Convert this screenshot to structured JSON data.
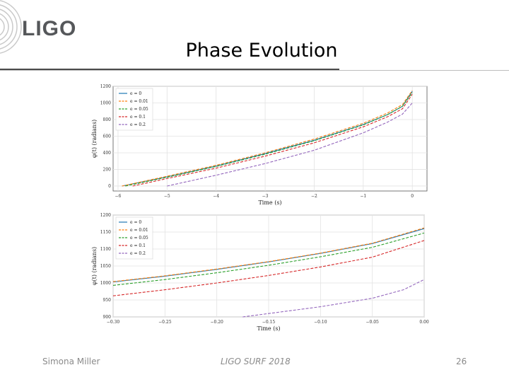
{
  "header": {
    "logo_text": "LIGO",
    "title": "Phase Evolution"
  },
  "footer": {
    "author": "Simona Miller",
    "event": "LIGO SURF 2018",
    "page_number": "26"
  },
  "colors": {
    "e0": "#1f77b4",
    "e001": "#ff7f0e",
    "e005": "#2ca02c",
    "e01": "#d62728",
    "e02": "#9467bd",
    "grid": "#e2e2e2",
    "axis": "#555555"
  },
  "chart_data": [
    {
      "type": "line",
      "title": "",
      "xlabel": "Time (s)",
      "ylabel": "φ(t) (radians)",
      "xlim": [
        -6.1,
        0.3
      ],
      "ylim": [
        -60,
        1200
      ],
      "xticks": [
        -6,
        -5,
        -4,
        -3,
        -2,
        -1,
        0
      ],
      "xtick_labels": [
        "−6",
        "−5",
        "−4",
        "−3",
        "−2",
        "−1",
        "0"
      ],
      "yticks": [
        0,
        200,
        400,
        600,
        800,
        1000,
        1200
      ],
      "ytick_labels": [
        "0",
        "200",
        "400",
        "600",
        "800",
        "1000",
        "1200"
      ],
      "legend": "top-left",
      "grid": true,
      "series": [
        {
          "name": "e = 0",
          "color_key": "e0",
          "dashed": false,
          "x": [
            -5.92,
            -5,
            -4,
            -3,
            -2,
            -1,
            -0.5,
            -0.2,
            0
          ],
          "y": [
            0,
            110,
            240,
            390,
            550,
            740,
            860,
            960,
            1140
          ]
        },
        {
          "name": "e = 0.01",
          "color_key": "e001",
          "dashed": true,
          "x": [
            -5.92,
            -5,
            -4,
            -3,
            -2,
            -1,
            -0.5,
            -0.2,
            0
          ],
          "y": [
            0,
            118,
            250,
            400,
            565,
            755,
            880,
            980,
            1150
          ]
        },
        {
          "name": "e = 0.05",
          "color_key": "e005",
          "dashed": true,
          "x": [
            -5.85,
            -5,
            -4,
            -3,
            -2,
            -1,
            -0.5,
            -0.2,
            0
          ],
          "y": [
            0,
            105,
            235,
            383,
            545,
            735,
            860,
            960,
            1125
          ]
        },
        {
          "name": "e = 0.1",
          "color_key": "e01",
          "dashed": true,
          "x": [
            -5.7,
            -5,
            -4,
            -3,
            -2,
            -1,
            -0.5,
            -0.2,
            0
          ],
          "y": [
            0,
            90,
            215,
            360,
            520,
            712,
            835,
            930,
            1105
          ]
        },
        {
          "name": "e = 0.2",
          "color_key": "e02",
          "dashed": true,
          "x": [
            -5.0,
            -4,
            -3,
            -2,
            -1,
            -0.5,
            -0.2,
            0
          ],
          "y": [
            0,
            130,
            270,
            430,
            640,
            770,
            865,
            1000
          ]
        }
      ]
    },
    {
      "type": "line",
      "title": "",
      "xlabel": "Time (s)",
      "ylabel": "φ(t) (radians)",
      "xlim": [
        -0.3,
        0.0
      ],
      "ylim": [
        900,
        1200
      ],
      "xticks": [
        -0.3,
        -0.25,
        -0.2,
        -0.15,
        -0.1,
        -0.05,
        0.0
      ],
      "xtick_labels": [
        "−0.30",
        "−0.25",
        "−0.20",
        "−0.15",
        "−0.10",
        "−0.05",
        "0.00"
      ],
      "yticks": [
        900,
        950,
        1000,
        1050,
        1100,
        1150,
        1200
      ],
      "ytick_labels": [
        "900",
        "950",
        "1000",
        "1050",
        "1100",
        "1150",
        "1200"
      ],
      "legend": "top-left",
      "grid": true,
      "series": [
        {
          "name": "e = 0",
          "color_key": "e0",
          "dashed": false,
          "x": [
            -0.3,
            -0.25,
            -0.2,
            -0.15,
            -0.1,
            -0.05,
            0.0
          ],
          "y": [
            1003,
            1020,
            1040,
            1062,
            1087,
            1116,
            1160
          ]
        },
        {
          "name": "e = 0.01",
          "color_key": "e001",
          "dashed": true,
          "x": [
            -0.3,
            -0.25,
            -0.2,
            -0.15,
            -0.1,
            -0.05,
            0.0
          ],
          "y": [
            1004,
            1021,
            1041,
            1063,
            1088,
            1117,
            1162
          ]
        },
        {
          "name": "e = 0.05",
          "color_key": "e005",
          "dashed": true,
          "x": [
            -0.3,
            -0.25,
            -0.2,
            -0.15,
            -0.1,
            -0.05,
            0.0
          ],
          "y": [
            993,
            1010,
            1030,
            1052,
            1077,
            1105,
            1147
          ]
        },
        {
          "name": "e = 0.1",
          "color_key": "e01",
          "dashed": true,
          "x": [
            -0.3,
            -0.25,
            -0.2,
            -0.15,
            -0.1,
            -0.05,
            0.0
          ],
          "y": [
            962,
            980,
            1000,
            1022,
            1047,
            1076,
            1125
          ]
        },
        {
          "name": "e = 0.2",
          "color_key": "e02",
          "dashed": true,
          "x": [
            -0.175,
            -0.15,
            -0.1,
            -0.05,
            -0.02,
            0.0
          ],
          "y": [
            900,
            910,
            930,
            955,
            980,
            1010
          ]
        }
      ]
    }
  ]
}
